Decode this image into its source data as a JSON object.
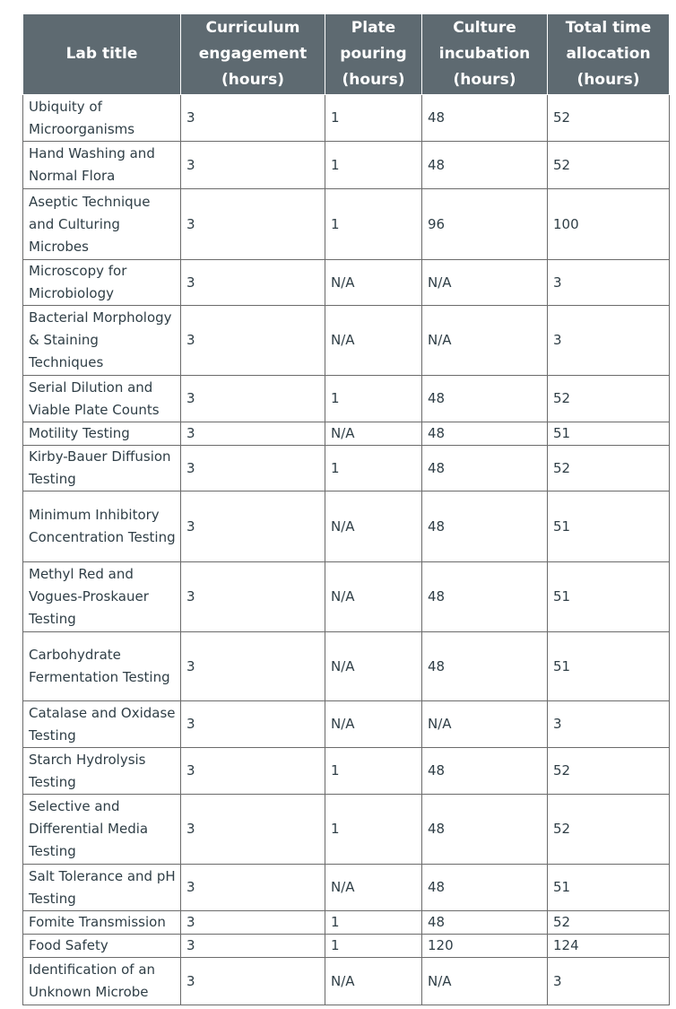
{
  "table": {
    "header": [
      "Lab title",
      "Curriculum engagement (hours)",
      "Plate pouring (hours)",
      "Culture incubation (hours)",
      "Total time allocation (hours)"
    ],
    "rows": [
      [
        "Ubiquity of Microorganisms",
        3,
        1,
        48,
        52
      ],
      [
        "Hand Washing and Normal Flora",
        3,
        1,
        48,
        52
      ],
      [
        "Aseptic Technique and Culturing Microbes",
        3,
        1,
        96,
        100
      ],
      [
        "Microscopy for Microbiology",
        3,
        "N/A",
        "N/A",
        3
      ],
      [
        "Bacterial Morphology & Staining Techniques",
        3,
        "N/A",
        "N/A",
        3
      ],
      [
        "Serial Dilution and Viable Plate Counts",
        3,
        1,
        48,
        52
      ],
      [
        "Motility Testing",
        3,
        "N/A",
        48,
        51
      ],
      [
        "Kirby-Bauer Diffusion Testing",
        3,
        1,
        48,
        52
      ],
      [
        "Minimum Inhibitory Concentration Testing",
        3,
        "N/A",
        48,
        51
      ],
      [
        "Methyl Red and Vogues-Proskauer Testing",
        3,
        "N/A",
        48,
        51
      ],
      [
        "Carbohydrate Fermentation Testing",
        3,
        "N/A",
        48,
        51
      ],
      [
        "Catalase and Oxidase Testing",
        3,
        "N/A",
        "N/A",
        3
      ],
      [
        "Starch Hydrolysis Testing",
        3,
        1,
        48,
        52
      ],
      [
        "Selective and Differential Media Testing",
        3,
        1,
        48,
        52
      ],
      [
        "Salt Tolerance and pH Testing",
        3,
        "N/A",
        48,
        51
      ],
      [
        "Fomite Transmission",
        3,
        1,
        48,
        52
      ],
      [
        "Food Safety",
        3,
        1,
        120,
        124
      ],
      [
        "Identification of an Unknown Microbe",
        3,
        "N/A",
        "N/A",
        3
      ]
    ]
  }
}
